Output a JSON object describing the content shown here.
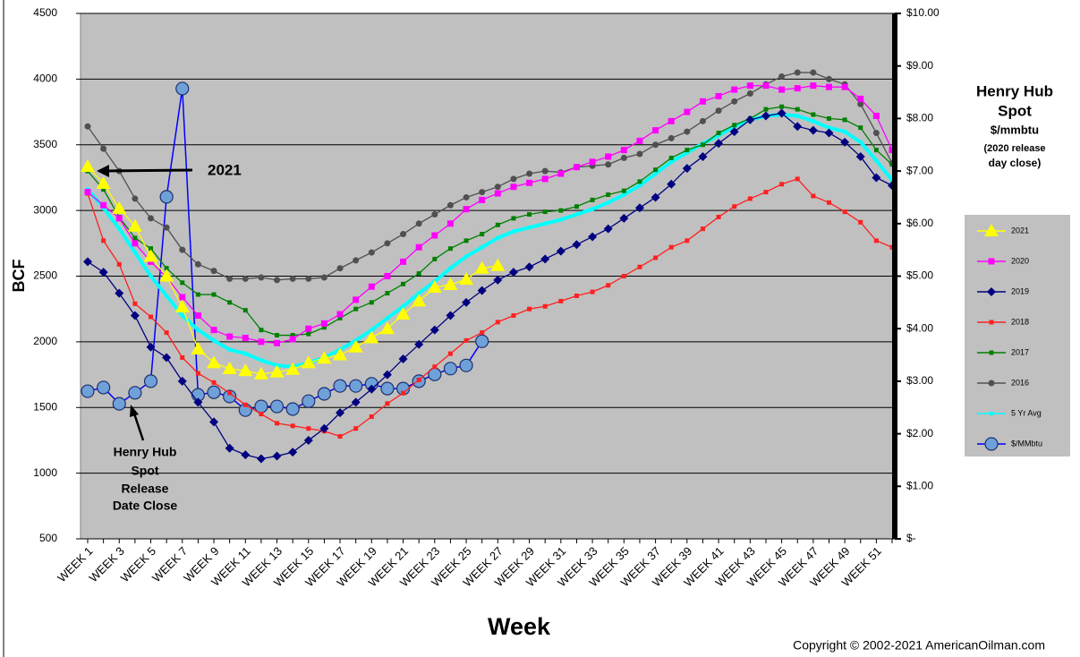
{
  "chart_data": {
    "type": "line",
    "ylabel": "BCF",
    "xlabel": "Week",
    "y2_title_lines": [
      "Henry Hub",
      "Spot",
      "$/mmbtu",
      "(2020 release",
      "day close)"
    ],
    "annotations": [
      "2021",
      "Henry Hub",
      "Spot",
      "Release",
      "Date Close"
    ],
    "copyright": "Copyright © 2002-2021 AmericanOilman.com",
    "categories": [
      "WEEK 1",
      null,
      "WEEK 3",
      null,
      "WEEK 5",
      null,
      "WEEK 7",
      null,
      "WEEK 9",
      null,
      "WEEK 11",
      null,
      "WEEK 13",
      null,
      "WEEK 15",
      null,
      "WEEK 17",
      null,
      "WEEK 19",
      null,
      "WEEK 21",
      null,
      "WEEK 23",
      null,
      "WEEK 25",
      null,
      "WEEK 27",
      null,
      "WEEK 29",
      null,
      "WEEK 31",
      null,
      "WEEK 33",
      null,
      "WEEK 35",
      null,
      "WEEK 37",
      null,
      "WEEK 39",
      null,
      "WEEK 41",
      null,
      "WEEK 43",
      null,
      "WEEK 45",
      null,
      "WEEK 47",
      null,
      "WEEK 49",
      null,
      "WEEK 51",
      null
    ],
    "ylim": [
      500,
      4500
    ],
    "yticks": [
      500,
      1000,
      1500,
      2000,
      2500,
      3000,
      3500,
      4000,
      4500
    ],
    "y2lim": [
      0,
      10
    ],
    "y2ticks": [
      {
        "value": 10,
        "label": "$10.00"
      },
      {
        "value": 9,
        "label": "$9.00"
      },
      {
        "value": 8,
        "label": "$8.00"
      },
      {
        "value": 7,
        "label": "$7.00"
      },
      {
        "value": 6,
        "label": "$6.00"
      },
      {
        "value": 5,
        "label": "$5.00"
      },
      {
        "value": 4,
        "label": "$4.00"
      },
      {
        "value": 3,
        "label": "$3.00"
      },
      {
        "value": 2,
        "label": "$2.00"
      },
      {
        "value": 1,
        "label": "$1.00"
      },
      {
        "value": 0,
        "label": "$-"
      }
    ],
    "grid": true,
    "series": [
      {
        "name": "2021",
        "color": "#ffff00",
        "marker": "triangle",
        "values": [
          3335,
          3205,
          3015,
          2880,
          2650,
          2500,
          2265,
          1945,
          1840,
          1795,
          1780,
          1755,
          1770,
          1790,
          1840,
          1875,
          1900,
          1960,
          2030,
          2100,
          2210,
          2310,
          2415,
          2435,
          2475,
          2560,
          2580,
          null,
          null,
          null,
          null,
          null,
          null,
          null,
          null,
          null,
          null,
          null,
          null,
          null,
          null,
          null,
          null,
          null,
          null,
          null,
          null,
          null,
          null,
          null,
          null,
          null
        ]
      },
      {
        "name": "2020",
        "color": "#ff00ff",
        "marker": "square",
        "values": [
          3140,
          3040,
          2940,
          2750,
          2610,
          2490,
          2340,
          2200,
          2090,
          2040,
          2030,
          2000,
          1990,
          2020,
          2100,
          2140,
          2210,
          2320,
          2420,
          2500,
          2610,
          2720,
          2810,
          2900,
          3010,
          3080,
          3130,
          3180,
          3210,
          3240,
          3280,
          3330,
          3370,
          3410,
          3460,
          3530,
          3610,
          3680,
          3750,
          3830,
          3870,
          3920,
          3950,
          3950,
          3920,
          3930,
          3950,
          3940,
          3940,
          3850,
          3720,
          3460
        ]
      },
      {
        "name": "2019",
        "color": "#000080",
        "marker": "diamond",
        "values": [
          2610,
          2530,
          2370,
          2200,
          1960,
          1880,
          1700,
          1540,
          1390,
          1190,
          1140,
          1110,
          1130,
          1160,
          1250,
          1340,
          1460,
          1540,
          1640,
          1750,
          1870,
          1980,
          2090,
          2200,
          2300,
          2390,
          2470,
          2530,
          2570,
          2630,
          2690,
          2740,
          2800,
          2860,
          2940,
          3020,
          3100,
          3200,
          3320,
          3410,
          3510,
          3600,
          3690,
          3720,
          3740,
          3640,
          3610,
          3590,
          3520,
          3410,
          3250,
          3190
        ]
      },
      {
        "name": "2018",
        "color": "#ff2020",
        "marker": "smallsquare",
        "values": [
          3130,
          2770,
          2590,
          2290,
          2190,
          2070,
          1880,
          1760,
          1690,
          1610,
          1520,
          1450,
          1380,
          1360,
          1340,
          1320,
          1280,
          1340,
          1430,
          1530,
          1610,
          1710,
          1810,
          1910,
          2010,
          2070,
          2150,
          2200,
          2250,
          2270,
          2310,
          2350,
          2380,
          2430,
          2500,
          2570,
          2640,
          2720,
          2770,
          2860,
          2950,
          3030,
          3090,
          3140,
          3200,
          3240,
          3110,
          3060,
          2990,
          2910,
          2770,
          2720
        ]
      },
      {
        "name": "2017",
        "color": "#008000",
        "marker": "smallsquare",
        "values": [
          3300,
          3160,
          2950,
          2790,
          2710,
          2560,
          2450,
          2360,
          2360,
          2300,
          2240,
          2090,
          2050,
          2050,
          2060,
          2110,
          2180,
          2250,
          2300,
          2370,
          2440,
          2520,
          2630,
          2710,
          2770,
          2820,
          2890,
          2940,
          2970,
          2990,
          3000,
          3030,
          3080,
          3120,
          3150,
          3220,
          3310,
          3400,
          3460,
          3500,
          3590,
          3650,
          3700,
          3770,
          3790,
          3770,
          3730,
          3700,
          3690,
          3630,
          3460,
          3350
        ]
      },
      {
        "name": "2016",
        "color": "#505050",
        "marker": "circle",
        "values": [
          3640,
          3470,
          3300,
          3090,
          2940,
          2870,
          2700,
          2590,
          2540,
          2480,
          2480,
          2490,
          2470,
          2480,
          2480,
          2490,
          2560,
          2620,
          2680,
          2750,
          2820,
          2900,
          2970,
          3040,
          3100,
          3140,
          3180,
          3240,
          3280,
          3300,
          3290,
          3330,
          3340,
          3350,
          3400,
          3430,
          3500,
          3550,
          3600,
          3680,
          3760,
          3830,
          3890,
          3960,
          4020,
          4050,
          4050,
          4000,
          3960,
          3810,
          3590,
          3360
        ]
      },
      {
        "name": "5 Yr Avg",
        "color": "#00ffff",
        "marker": "smallcircle",
        "values": [
          3160,
          3020,
          2860,
          2680,
          2500,
          2350,
          2200,
          2090,
          2010,
          1940,
          1910,
          1860,
          1820,
          1810,
          1840,
          1880,
          1940,
          2010,
          2090,
          2180,
          2270,
          2370,
          2460,
          2560,
          2650,
          2720,
          2790,
          2840,
          2870,
          2900,
          2930,
          2970,
          3010,
          3060,
          3120,
          3190,
          3280,
          3370,
          3440,
          3510,
          3570,
          3640,
          3690,
          3720,
          3730,
          3720,
          3680,
          3630,
          3600,
          3520,
          3380,
          3230
        ]
      },
      {
        "name": "$/MMbtu",
        "color": "#0000ff",
        "marker": "bigcircle",
        "axis": "y2",
        "values": [
          2.81,
          2.88,
          2.57,
          2.78,
          3.0,
          6.51,
          8.57,
          2.74,
          2.79,
          2.71,
          2.45,
          2.52,
          2.52,
          2.47,
          2.62,
          2.76,
          2.91,
          2.91,
          2.95,
          2.86,
          2.86,
          3.0,
          3.13,
          3.24,
          3.3,
          3.76,
          null,
          null,
          null,
          null,
          null,
          null,
          null,
          null,
          null,
          null,
          null,
          null,
          null,
          null,
          null,
          null,
          null,
          null,
          null,
          null,
          null,
          null,
          null,
          null,
          null,
          null
        ]
      }
    ]
  }
}
